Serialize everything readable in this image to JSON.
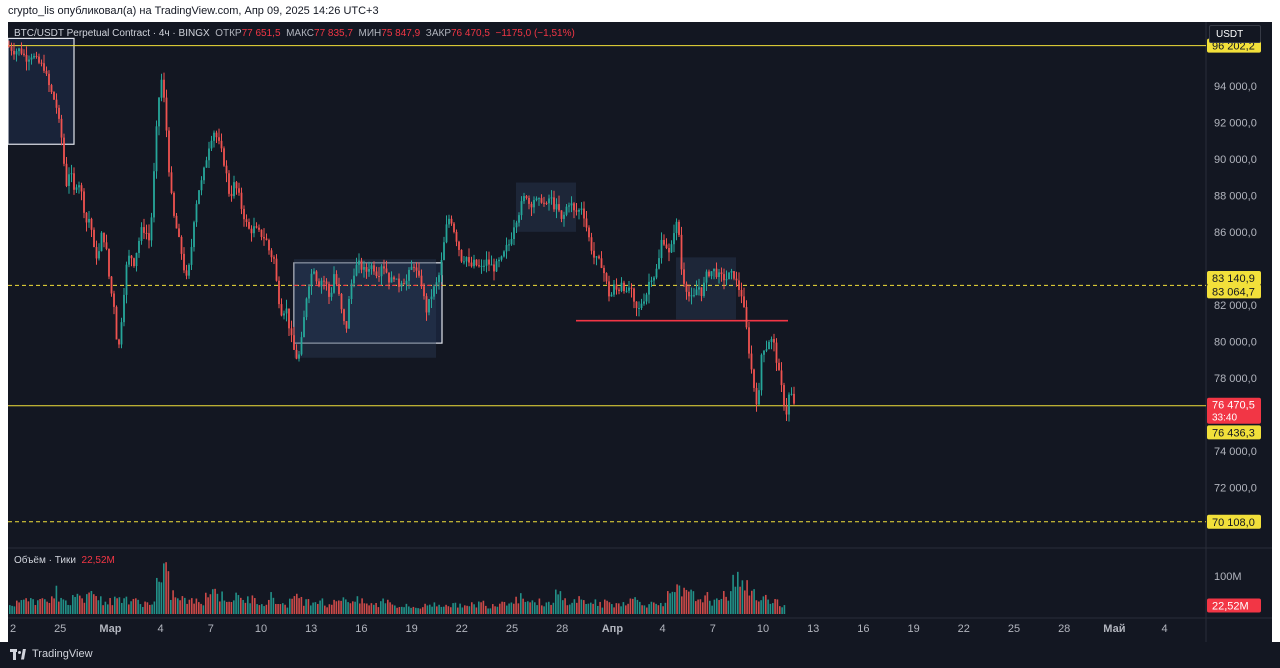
{
  "header": {
    "publish_note": "crypto_lis опубликовал(а) на TradingView.com, Апр 09, 2025 14:26 UTC+3"
  },
  "legend": {
    "symbol": "BTC/USDT Perpetual Contract · 4ч · BINGX",
    "open_label": "ОТКР",
    "open": "77 651,5",
    "high_label": "МАКС",
    "high": "77 835,7",
    "low_label": "МИН",
    "low": "75 847,9",
    "close_label": "ЗАКР",
    "close": "76 470,5",
    "change": "−1175,0 (−1,51%)"
  },
  "currency_button": "USDT",
  "volume_legend": {
    "label": "Объём · Тики",
    "value": "22,52M"
  },
  "footer": {
    "brand": "TradingView"
  },
  "colors": {
    "background": "#131722",
    "up": "#26a69a",
    "down": "#ef5350",
    "level": "#f2e03a",
    "resistance": "#f23645"
  },
  "chart_data": {
    "type": "candlestick",
    "price_axis": {
      "ticks": [
        "94 000,0",
        "92 000,0",
        "90 000,0",
        "88 000,0",
        "86 000,0",
        "82 000,0",
        "80 000,0",
        "78 000,0",
        "74 000,0",
        "72 000,0"
      ],
      "tick_values": [
        94000,
        92000,
        90000,
        88000,
        86000,
        82000,
        80000,
        78000,
        74000,
        72000
      ],
      "range": [
        69000,
        97500
      ]
    },
    "time_axis": {
      "labels": [
        "2",
        "25",
        "Мар",
        "4",
        "7",
        "10",
        "13",
        "16",
        "19",
        "22",
        "25",
        "28",
        "Апр",
        "4",
        "7",
        "10",
        "13",
        "16",
        "19",
        "22",
        "25",
        "28",
        "Май",
        "4"
      ],
      "bold": [
        "Мар",
        "Апр",
        "Май"
      ]
    },
    "volume_axis": {
      "ticks": [
        "100M"
      ],
      "tick_values": [
        100
      ]
    },
    "price_labels": [
      {
        "text": "96 202,2",
        "value": 96202.2,
        "style": "level"
      },
      {
        "text": "83 140,9",
        "value": 83140.9,
        "style": "level"
      },
      {
        "text": "83 064,7",
        "value": 83064.7,
        "style": "level"
      },
      {
        "text": "76 470,5",
        "value": 76470.5,
        "style": "last",
        "sub": "33:40"
      },
      {
        "text": "76 436,3",
        "value": 76436.3,
        "style": "level"
      },
      {
        "text": "70 108,0",
        "value": 70108.0,
        "style": "level"
      }
    ],
    "volume_price_label": {
      "text": "22,52M",
      "value": 22.52
    },
    "horizontal_levels": [
      {
        "value": 96202.2,
        "style": "solid"
      },
      {
        "value": 76470.5,
        "style": "solid"
      },
      {
        "value": 83064.7,
        "style": "dashed"
      },
      {
        "value": 70108.0,
        "style": "dashed"
      }
    ],
    "price_path": [
      [
        0,
        96200
      ],
      [
        6,
        95900
      ],
      [
        12,
        96000
      ],
      [
        18,
        95500
      ],
      [
        24,
        95700
      ],
      [
        30,
        95300
      ],
      [
        36,
        95000
      ],
      [
        42,
        93800
      ],
      [
        48,
        93000
      ],
      [
        54,
        91000
      ],
      [
        58,
        88500
      ],
      [
        62,
        89500
      ],
      [
        66,
        88200
      ],
      [
        70,
        88900
      ],
      [
        74,
        88000
      ],
      [
        78,
        86500
      ],
      [
        82,
        86800
      ],
      [
        86,
        85000
      ],
      [
        90,
        84500
      ],
      [
        94,
        86000
      ],
      [
        98,
        85200
      ],
      [
        102,
        83000
      ],
      [
        106,
        82000
      ],
      [
        110,
        79200
      ],
      [
        114,
        81500
      ],
      [
        118,
        84000
      ],
      [
        122,
        84800
      ],
      [
        126,
        84300
      ],
      [
        130,
        85300
      ],
      [
        134,
        86200
      ],
      [
        138,
        86000
      ],
      [
        142,
        85400
      ],
      [
        146,
        89200
      ],
      [
        150,
        93000
      ],
      [
        154,
        94500
      ],
      [
        158,
        92000
      ],
      [
        162,
        88600
      ],
      [
        166,
        86800
      ],
      [
        170,
        85800
      ],
      [
        174,
        84700
      ],
      [
        178,
        83300
      ],
      [
        182,
        84300
      ],
      [
        186,
        86700
      ],
      [
        190,
        88200
      ],
      [
        194,
        88800
      ],
      [
        198,
        89900
      ],
      [
        202,
        91000
      ],
      [
        206,
        91500
      ],
      [
        210,
        91000
      ],
      [
        214,
        90300
      ],
      [
        218,
        89300
      ],
      [
        222,
        87800
      ],
      [
        226,
        88600
      ],
      [
        230,
        88200
      ],
      [
        234,
        87200
      ],
      [
        238,
        86500
      ],
      [
        242,
        86000
      ],
      [
        246,
        86200
      ],
      [
        250,
        86000
      ],
      [
        254,
        85800
      ],
      [
        258,
        85600
      ],
      [
        262,
        84800
      ],
      [
        266,
        84500
      ],
      [
        270,
        82500
      ],
      [
        274,
        81500
      ],
      [
        278,
        81900
      ],
      [
        282,
        80500
      ],
      [
        286,
        79500
      ],
      [
        290,
        78900
      ],
      [
        294,
        80200
      ],
      [
        298,
        82300
      ],
      [
        302,
        83500
      ],
      [
        306,
        84000
      ],
      [
        310,
        83100
      ],
      [
        314,
        83400
      ],
      [
        318,
        83200
      ],
      [
        322,
        82200
      ],
      [
        326,
        83700
      ],
      [
        330,
        82800
      ],
      [
        334,
        81500
      ],
      [
        338,
        80500
      ],
      [
        342,
        82800
      ],
      [
        346,
        83800
      ],
      [
        350,
        84300
      ],
      [
        354,
        84000
      ],
      [
        358,
        83800
      ],
      [
        362,
        84200
      ],
      [
        366,
        84000
      ],
      [
        370,
        83600
      ],
      [
        374,
        84300
      ],
      [
        378,
        83900
      ],
      [
        382,
        83200
      ],
      [
        386,
        83600
      ],
      [
        390,
        83000
      ],
      [
        394,
        83400
      ],
      [
        398,
        83200
      ],
      [
        402,
        83900
      ],
      [
        406,
        84200
      ],
      [
        410,
        83500
      ],
      [
        414,
        83100
      ],
      [
        418,
        81600
      ],
      [
        422,
        82300
      ],
      [
        426,
        82900
      ],
      [
        430,
        83300
      ],
      [
        434,
        84500
      ],
      [
        438,
        86200
      ],
      [
        442,
        86900
      ],
      [
        446,
        86100
      ],
      [
        450,
        85300
      ],
      [
        454,
        84400
      ],
      [
        458,
        84700
      ],
      [
        462,
        84000
      ],
      [
        466,
        84300
      ],
      [
        470,
        84100
      ],
      [
        474,
        84000
      ],
      [
        478,
        84400
      ],
      [
        482,
        84200
      ],
      [
        486,
        84000
      ],
      [
        490,
        84300
      ],
      [
        494,
        84500
      ],
      [
        498,
        85100
      ],
      [
        502,
        85400
      ],
      [
        506,
        86400
      ],
      [
        510,
        86900
      ],
      [
        514,
        87600
      ],
      [
        518,
        88100
      ],
      [
        522,
        87400
      ],
      [
        526,
        87800
      ],
      [
        530,
        87600
      ],
      [
        534,
        87800
      ],
      [
        538,
        87300
      ],
      [
        542,
        88000
      ],
      [
        546,
        87400
      ],
      [
        550,
        87300
      ],
      [
        554,
        86500
      ],
      [
        558,
        87300
      ],
      [
        562,
        87700
      ],
      [
        566,
        87100
      ],
      [
        570,
        87100
      ],
      [
        574,
        87400
      ],
      [
        578,
        86400
      ],
      [
        582,
        85400
      ],
      [
        586,
        84600
      ],
      [
        590,
        84400
      ],
      [
        594,
        84200
      ],
      [
        598,
        83300
      ],
      [
        602,
        82300
      ],
      [
        606,
        83000
      ],
      [
        610,
        82700
      ],
      [
        614,
        83400
      ],
      [
        618,
        82500
      ],
      [
        622,
        83100
      ],
      [
        626,
        82000
      ],
      [
        630,
        81600
      ],
      [
        634,
        82200
      ],
      [
        638,
        82500
      ],
      [
        642,
        83500
      ],
      [
        646,
        83600
      ],
      [
        650,
        84100
      ],
      [
        654,
        85700
      ],
      [
        658,
        85300
      ],
      [
        662,
        84600
      ],
      [
        666,
        86100
      ],
      [
        670,
        86600
      ],
      [
        674,
        83600
      ],
      [
        678,
        83000
      ],
      [
        682,
        82300
      ],
      [
        686,
        82400
      ],
      [
        690,
        83100
      ],
      [
        694,
        82600
      ],
      [
        698,
        83600
      ],
      [
        702,
        83800
      ],
      [
        706,
        83900
      ],
      [
        710,
        83600
      ],
      [
        714,
        83500
      ],
      [
        718,
        83400
      ],
      [
        722,
        83700
      ],
      [
        726,
        83600
      ],
      [
        730,
        83000
      ],
      [
        734,
        82500
      ],
      [
        738,
        80900
      ],
      [
        742,
        79000
      ],
      [
        746,
        77500
      ],
      [
        750,
        76300
      ],
      [
        754,
        79700
      ],
      [
        758,
        79600
      ],
      [
        762,
        80200
      ],
      [
        766,
        79800
      ],
      [
        770,
        78500
      ],
      [
        774,
        77300
      ],
      [
        778,
        75900
      ],
      [
        782,
        77400
      ],
      [
        786,
        76470
      ]
    ],
    "volume_profile": [
      30,
      35,
      60,
      40,
      55,
      45,
      70,
      38,
      34,
      60,
      48,
      90,
      55,
      42,
      38,
      45,
      52,
      36,
      40,
      33,
      35,
      95,
      120,
      60,
      45,
      42,
      38,
      40,
      65,
      70,
      55,
      48,
      50,
      44,
      46,
      40,
      38,
      52,
      36,
      30,
      42,
      55,
      38,
      40,
      48,
      30,
      34,
      52,
      45,
      41,
      36,
      30,
      28,
      42,
      40,
      26,
      24,
      22,
      20,
      25,
      30,
      28,
      32,
      26,
      30,
      22,
      28,
      34,
      26,
      30,
      38,
      40,
      46,
      54,
      40,
      36,
      34,
      30,
      60,
      42,
      38,
      46,
      36,
      38,
      28,
      34,
      30,
      34,
      40,
      44,
      38,
      30,
      34,
      36,
      54,
      70,
      64,
      58,
      48,
      52,
      40,
      36,
      60,
      90,
      120,
      80,
      60,
      50,
      46,
      40,
      22
    ],
    "overlays": [
      {
        "kind": "box",
        "from": 0,
        "to": 66,
        "top": 96600,
        "bottom": 90800
      },
      {
        "kind": "box",
        "from": 286,
        "to": 434,
        "top": 84300,
        "bottom": 79900
      },
      {
        "kind": "zone",
        "from": 286,
        "to": 428,
        "top": 84500,
        "bottom": 79100
      },
      {
        "kind": "zone",
        "from": 508,
        "to": 568,
        "top": 88700,
        "bottom": 86000
      },
      {
        "kind": "zone",
        "from": 668,
        "to": 728,
        "top": 84600,
        "bottom": 81200
      },
      {
        "kind": "segment",
        "from": 568,
        "to": 780,
        "value": 81130
      }
    ]
  }
}
